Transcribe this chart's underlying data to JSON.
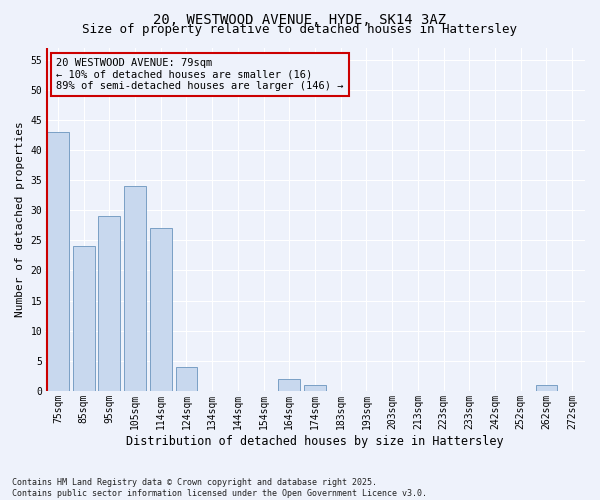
{
  "title": "20, WESTWOOD AVENUE, HYDE, SK14 3AZ",
  "subtitle": "Size of property relative to detached houses in Hattersley",
  "xlabel": "Distribution of detached houses by size in Hattersley",
  "ylabel": "Number of detached properties",
  "categories": [
    "75sqm",
    "85sqm",
    "95sqm",
    "105sqm",
    "114sqm",
    "124sqm",
    "134sqm",
    "144sqm",
    "154sqm",
    "164sqm",
    "174sqm",
    "183sqm",
    "193sqm",
    "203sqm",
    "213sqm",
    "223sqm",
    "233sqm",
    "242sqm",
    "252sqm",
    "262sqm",
    "272sqm"
  ],
  "values": [
    43,
    24,
    29,
    34,
    27,
    4,
    0,
    0,
    0,
    2,
    1,
    0,
    0,
    0,
    0,
    0,
    0,
    0,
    0,
    1,
    0
  ],
  "bar_color": "#c8d8ee",
  "bar_edge_color": "#7a9fc5",
  "property_line_color": "#cc0000",
  "annotation_text": "20 WESTWOOD AVENUE: 79sqm\n← 10% of detached houses are smaller (16)\n89% of semi-detached houses are larger (146) →",
  "annotation_box_color": "#cc0000",
  "ylim": [
    0,
    57
  ],
  "yticks": [
    0,
    5,
    10,
    15,
    20,
    25,
    30,
    35,
    40,
    45,
    50,
    55
  ],
  "footer": "Contains HM Land Registry data © Crown copyright and database right 2025.\nContains public sector information licensed under the Open Government Licence v3.0.",
  "background_color": "#eef2fb",
  "grid_color": "#ffffff",
  "title_fontsize": 10,
  "subtitle_fontsize": 9,
  "xlabel_fontsize": 8.5,
  "ylabel_fontsize": 8,
  "tick_fontsize": 7,
  "annotation_fontsize": 7.5,
  "footer_fontsize": 6
}
